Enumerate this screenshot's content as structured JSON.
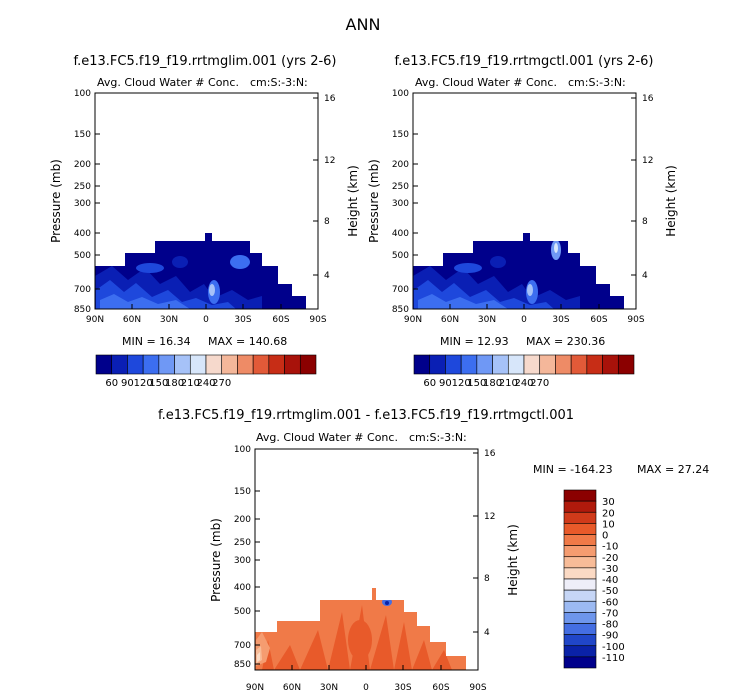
{
  "title": "ANN",
  "chart_data": [
    {
      "type": "heatmap",
      "title": "f.e13.FC5.f19_f19.rrtmglim.001 (yrs 2-6)",
      "subtitle_left": "Avg. Cloud Water # Conc.",
      "subtitle_right": "cm:S:-3:N:",
      "ylabel": "Pressure (mb)",
      "y2label": "Height (km)",
      "xlim": [
        "90N",
        "90S"
      ],
      "ylim": [
        850,
        100
      ],
      "x_ticks": [
        "90N",
        "60N",
        "30N",
        "0",
        "30S",
        "60S",
        "90S"
      ],
      "y_ticks": [
        "100",
        "150",
        "200",
        "250",
        "300",
        "400",
        "500",
        "700",
        "850"
      ],
      "y2_ticks": [
        "16",
        "12",
        "8",
        "4"
      ],
      "min_text": "MIN =   16.34",
      "max_text": "MAX = 140.68",
      "colorbar": {
        "labels": [
          "60",
          "90",
          "120",
          "150",
          "180",
          "210",
          "240",
          "270"
        ],
        "colors": [
          "#00008b",
          "#0a1fb4",
          "#1e48dc",
          "#3c6ef0",
          "#6f98f5",
          "#a6c2f8",
          "#d7e6fa",
          "#f6d9cc",
          "#f4b79a",
          "#ee8b66",
          "#e25a38",
          "#c72d16",
          "#a8120a",
          "#8b0000"
        ]
      }
    },
    {
      "type": "heatmap",
      "title": "f.e13.FC5.f19_f19.rrtmgctl.001 (yrs 2-6)",
      "subtitle_left": "Avg. Cloud Water # Conc.",
      "subtitle_right": "cm:S:-3:N:",
      "ylabel": "Pressure (mb)",
      "y2label": "Height (km)",
      "xlim": [
        "90N",
        "90S"
      ],
      "ylim": [
        850,
        100
      ],
      "x_ticks": [
        "90N",
        "60N",
        "30N",
        "0",
        "30S",
        "60S",
        "90S"
      ],
      "y_ticks": [
        "100",
        "150",
        "200",
        "250",
        "300",
        "400",
        "500",
        "700",
        "850"
      ],
      "y2_ticks": [
        "16",
        "12",
        "8",
        "4"
      ],
      "min_text": "MIN =   12.93",
      "max_text": "MAX = 230.36",
      "colorbar": {
        "labels": [
          "60",
          "90",
          "120",
          "150",
          "180",
          "210",
          "240",
          "270"
        ],
        "colors": [
          "#00008b",
          "#0a1fb4",
          "#1e48dc",
          "#3c6ef0",
          "#6f98f5",
          "#a6c2f8",
          "#d7e6fa",
          "#f6d9cc",
          "#f4b79a",
          "#ee8b66",
          "#e25a38",
          "#c72d16",
          "#a8120a",
          "#8b0000"
        ]
      }
    },
    {
      "type": "heatmap",
      "title": "f.e13.FC5.f19_f19.rrtmglim.001 - f.e13.FC5.f19_f19.rrtmgctl.001",
      "subtitle_left": "Avg. Cloud Water # Conc.",
      "subtitle_right": "cm:S:-3:N:",
      "ylabel": "Pressure (mb)",
      "y2label": "Height (km)",
      "xlim": [
        "90N",
        "90S"
      ],
      "ylim": [
        850,
        100
      ],
      "x_ticks": [
        "90N",
        "60N",
        "30N",
        "0",
        "30S",
        "60S",
        "90S"
      ],
      "y_ticks": [
        "100",
        "150",
        "200",
        "250",
        "300",
        "400",
        "500",
        "700",
        "850"
      ],
      "y2_ticks": [
        "16",
        "12",
        "8",
        "4"
      ],
      "min_text": "MIN = -164.23",
      "max_text": "MAX =   27.24",
      "colorbar": {
        "labels": [
          "30",
          "20",
          "10",
          "0",
          "-10",
          "-20",
          "-30",
          "-40",
          "-50",
          "-60",
          "-70",
          "-80",
          "-90",
          "-100",
          "-110"
        ],
        "colors": [
          "#8b0000",
          "#b01a0c",
          "#d03a1a",
          "#e85a2a",
          "#f07a48",
          "#f59c70",
          "#f8bc98",
          "#fbdac4",
          "#eeeef8",
          "#c6d6f6",
          "#9cbaf2",
          "#6e96ec",
          "#446ee2",
          "#2046c8",
          "#0a22a8",
          "#00008b"
        ]
      }
    }
  ]
}
